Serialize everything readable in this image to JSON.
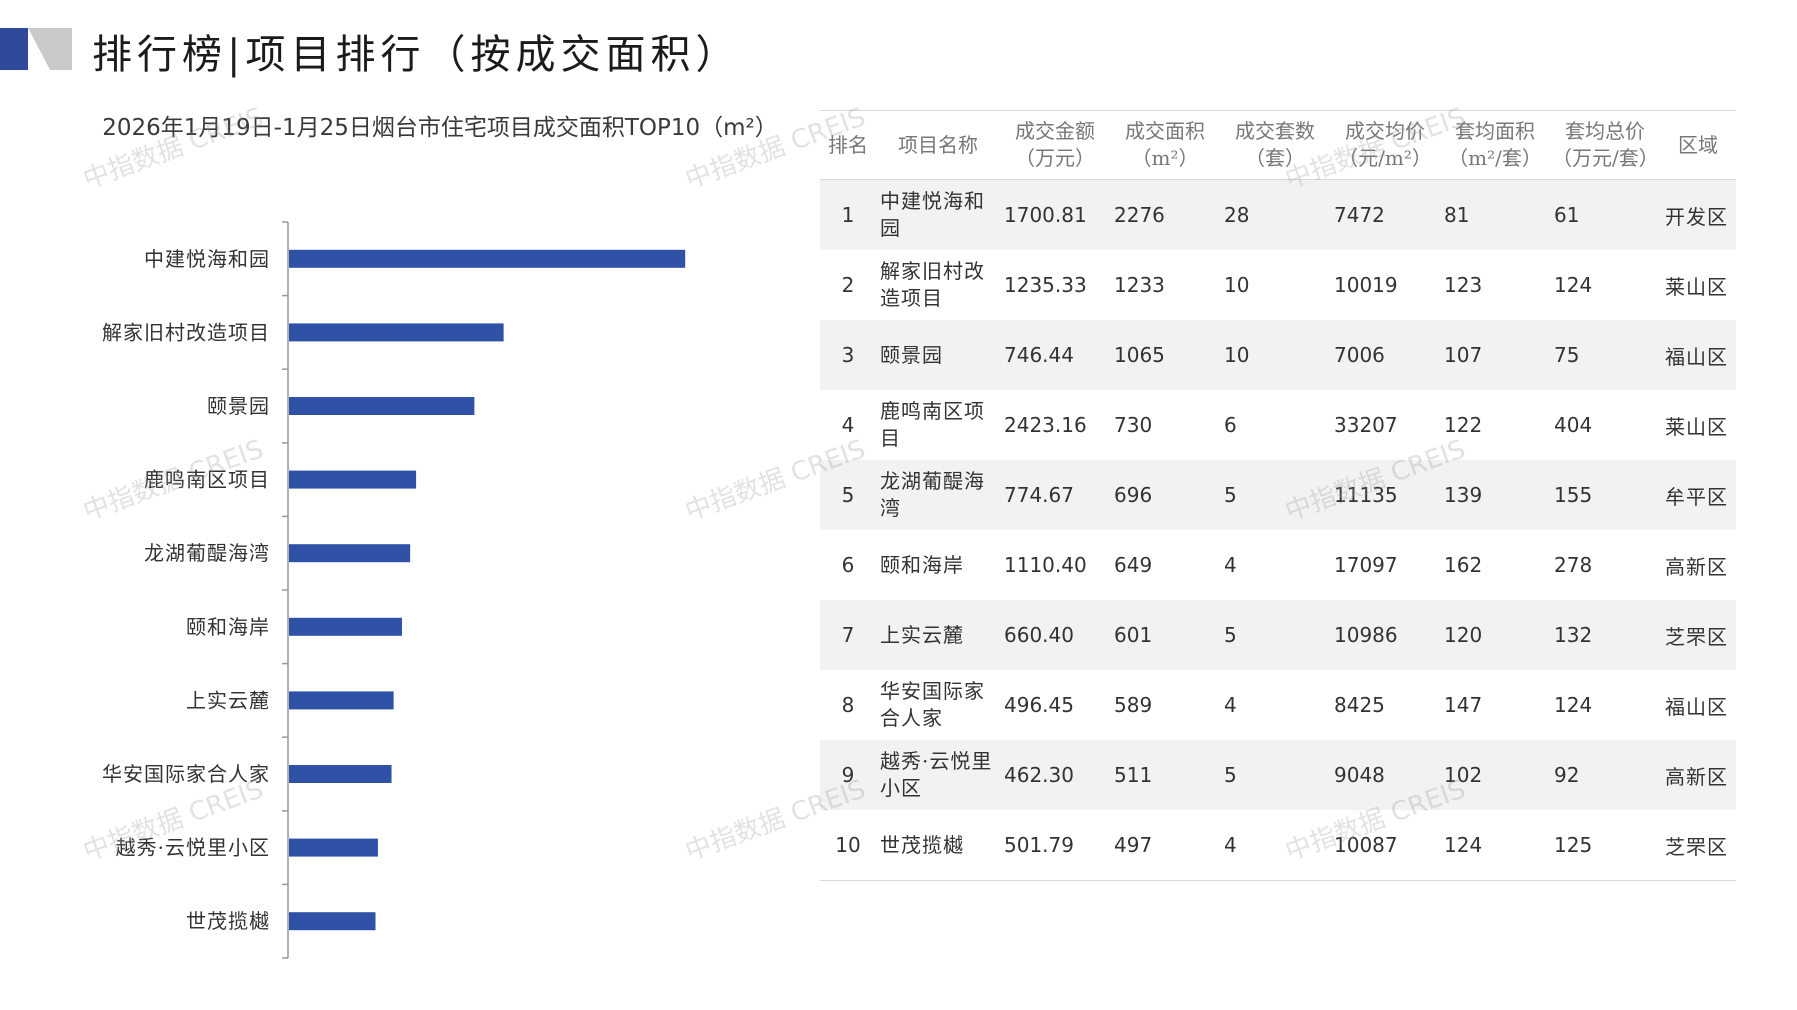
{
  "header": {
    "title": "排行榜|项目排行（按成交面积）"
  },
  "colors": {
    "bar": "#2f52a6",
    "logo_dark": "#2f4a9a",
    "logo_light": "#c9c9c9"
  },
  "watermark_text": "中指数据 CREIS",
  "chart_data": {
    "type": "bar",
    "orientation": "horizontal",
    "title": "2026年1月19日-1月25日烟台市住宅项目成交面积TOP10（m²）",
    "categories": [
      "中建悦海和园",
      "解家旧村改造项目",
      "颐景园",
      "鹿鸣南区项目",
      "龙湖葡醍海湾",
      "颐和海岸",
      "上实云麓",
      "华安国际家合人家",
      "越秀·云悦里小区",
      "世茂揽樾"
    ],
    "values": [
      2276,
      1233,
      1065,
      730,
      696,
      649,
      601,
      589,
      511,
      497
    ],
    "xlim": [
      0,
      2700
    ],
    "grid": false,
    "legend": "none"
  },
  "table": {
    "headers": [
      "排名",
      "项目名称",
      "成交金额\n（万元）",
      "成交面积\n（m²）",
      "成交套数\n（套）",
      "成交均价\n（元/m²）",
      "套均面积\n（m²/套）",
      "套均总价\n（万元/套）",
      "区域"
    ],
    "rows": [
      {
        "rank": "1",
        "name": "中建悦海和园",
        "amount": "1700.81",
        "area": "2276",
        "units": "28",
        "price": "7472",
        "avg_area": "81",
        "avg_total": "61",
        "region": "开发区"
      },
      {
        "rank": "2",
        "name": "解家旧村改造项目",
        "amount": "1235.33",
        "area": "1233",
        "units": "10",
        "price": "10019",
        "avg_area": "123",
        "avg_total": "124",
        "region": "莱山区"
      },
      {
        "rank": "3",
        "name": "颐景园",
        "amount": "746.44",
        "area": "1065",
        "units": "10",
        "price": "7006",
        "avg_area": "107",
        "avg_total": "75",
        "region": "福山区"
      },
      {
        "rank": "4",
        "name": "鹿鸣南区项目",
        "amount": "2423.16",
        "area": "730",
        "units": "6",
        "price": "33207",
        "avg_area": "122",
        "avg_total": "404",
        "region": "莱山区"
      },
      {
        "rank": "5",
        "name": "龙湖葡醍海湾",
        "amount": "774.67",
        "area": "696",
        "units": "5",
        "price": "11135",
        "avg_area": "139",
        "avg_total": "155",
        "region": "牟平区"
      },
      {
        "rank": "6",
        "name": "颐和海岸",
        "amount": "1110.40",
        "area": "649",
        "units": "4",
        "price": "17097",
        "avg_area": "162",
        "avg_total": "278",
        "region": "高新区"
      },
      {
        "rank": "7",
        "name": "上实云麓",
        "amount": "660.40",
        "area": "601",
        "units": "5",
        "price": "10986",
        "avg_area": "120",
        "avg_total": "132",
        "region": "芝罘区"
      },
      {
        "rank": "8",
        "name": "华安国际家合人家",
        "amount": "496.45",
        "area": "589",
        "units": "4",
        "price": "8425",
        "avg_area": "147",
        "avg_total": "124",
        "region": "福山区"
      },
      {
        "rank": "9",
        "name": "越秀·云悦里小区",
        "amount": "462.30",
        "area": "511",
        "units": "5",
        "price": "9048",
        "avg_area": "102",
        "avg_total": "92",
        "region": "高新区"
      },
      {
        "rank": "10",
        "name": "世茂揽樾",
        "amount": "501.79",
        "area": "497",
        "units": "4",
        "price": "10087",
        "avg_area": "124",
        "avg_total": "125",
        "region": "芝罘区"
      }
    ]
  }
}
